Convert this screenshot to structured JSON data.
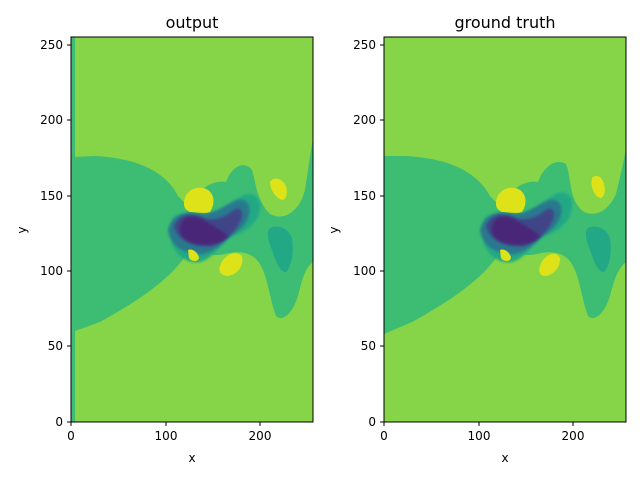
{
  "chart_data": [
    {
      "type": "contour",
      "title": "output",
      "xlabel": "x",
      "ylabel": "y",
      "xlim": [
        0,
        256
      ],
      "ylim": [
        0,
        256
      ],
      "xticks": [
        0,
        100,
        200
      ],
      "yticks": [
        0,
        50,
        100,
        150,
        200,
        250
      ],
      "colormap": "viridis",
      "levels": {
        "background": "#86d549",
        "wake": "#3dbc74",
        "mid_negative": "#22a884",
        "negative": "#2a788e",
        "strong_negative": "#414487",
        "core": "#482878",
        "positive": "#dde318"
      },
      "features": [
        {
          "name": "wake",
          "level": "wake",
          "x_range": [
            4,
            140
          ],
          "y_range": [
            60,
            177
          ]
        },
        {
          "name": "vortex-core",
          "level": "core",
          "center": [
            140,
            125
          ]
        },
        {
          "name": "upper-positive-lobe",
          "level": "positive",
          "center": [
            136,
            148
          ]
        },
        {
          "name": "lower-positive-lobe",
          "level": "positive",
          "center": [
            171,
            105
          ]
        },
        {
          "name": "right-positive-lobe",
          "level": "positive",
          "center": [
            220,
            155
          ]
        },
        {
          "name": "right-negative-lobe",
          "level": "mid_negative",
          "center": [
            222,
            115
          ]
        }
      ]
    },
    {
      "type": "contour",
      "title": "ground truth",
      "xlabel": "x",
      "ylabel": "y",
      "xlim": [
        0,
        256
      ],
      "ylim": [
        0,
        256
      ],
      "xticks": [
        0,
        100,
        200
      ],
      "yticks": [
        0,
        50,
        100,
        150,
        200,
        250
      ],
      "colormap": "viridis",
      "levels": {
        "background": "#86d549",
        "wake": "#3dbc74",
        "mid_negative": "#22a884",
        "negative": "#2a788e",
        "strong_negative": "#414487",
        "core": "#482878",
        "positive": "#dde318"
      },
      "features": [
        {
          "name": "wake",
          "level": "wake",
          "x_range": [
            0,
            140
          ],
          "y_range": [
            58,
            177
          ]
        },
        {
          "name": "vortex-core",
          "level": "core",
          "center": [
            140,
            125
          ]
        },
        {
          "name": "upper-positive-lobe",
          "level": "positive",
          "center": [
            137,
            147
          ]
        },
        {
          "name": "lower-positive-lobe",
          "level": "positive",
          "center": [
            175,
            105
          ]
        },
        {
          "name": "right-positive-lobe",
          "level": "positive",
          "center": [
            227,
            155
          ]
        },
        {
          "name": "right-negative-lobe",
          "level": "mid_negative",
          "center": [
            228,
            115
          ]
        }
      ]
    }
  ]
}
